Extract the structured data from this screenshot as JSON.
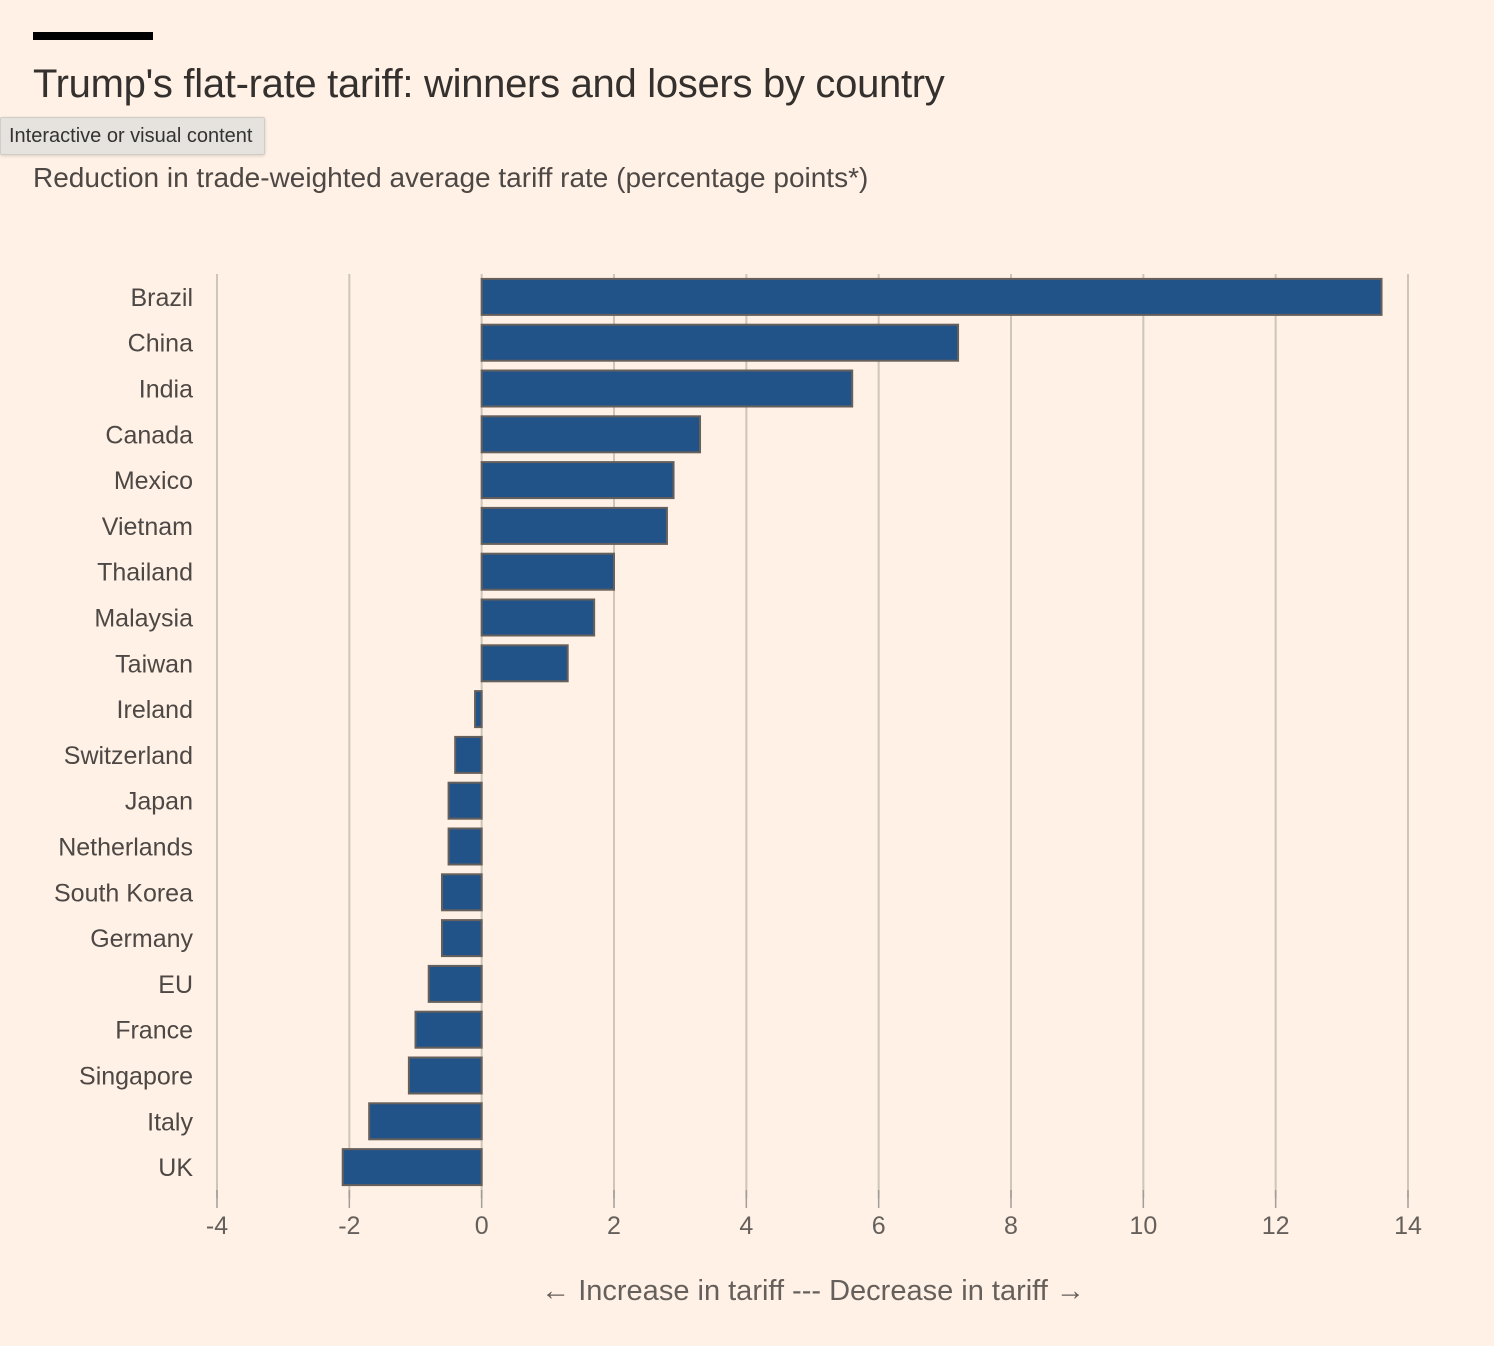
{
  "header": {
    "title": "Trump's flat-rate tariff: winners and losers by country",
    "subtitle": "Reduction in trade-weighted average tariff rate (percentage points*)",
    "tooltip": "Interactive or visual content"
  },
  "colors": {
    "background": "#fff1e5",
    "bar": "#215389",
    "bar_stroke": "#66605c",
    "grid": "#cec6b9"
  },
  "chart_data": {
    "type": "bar",
    "orientation": "horizontal",
    "title": "Trump's flat-rate tariff: winners and losers by country",
    "subtitle": "Reduction in trade-weighted average tariff rate (percentage points*)",
    "xlabel": "← Increase in tariff --- Decrease in tariff →",
    "ylabel": "",
    "xlim": [
      -4,
      14
    ],
    "xticks": [
      -4,
      -2,
      0,
      2,
      4,
      6,
      8,
      10,
      12,
      14
    ],
    "xtick_labels": [
      "-4",
      "-2",
      "0",
      "2",
      "4",
      "6",
      "8",
      "10",
      "12",
      "14"
    ],
    "grid": true,
    "categories": [
      "Brazil",
      "China",
      "India",
      "Canada",
      "Mexico",
      "Vietnam",
      "Thailand",
      "Malaysia",
      "Taiwan",
      "Ireland",
      "Switzerland",
      "Japan",
      "Netherlands",
      "South Korea",
      "Germany",
      "EU",
      "France",
      "Singapore",
      "Italy",
      "UK"
    ],
    "values": [
      13.6,
      7.2,
      5.6,
      3.3,
      2.9,
      2.8,
      2.0,
      1.7,
      1.3,
      -0.1,
      -0.4,
      -0.5,
      -0.5,
      -0.6,
      -0.6,
      -0.8,
      -1.0,
      -1.1,
      -1.7,
      -2.1
    ]
  }
}
